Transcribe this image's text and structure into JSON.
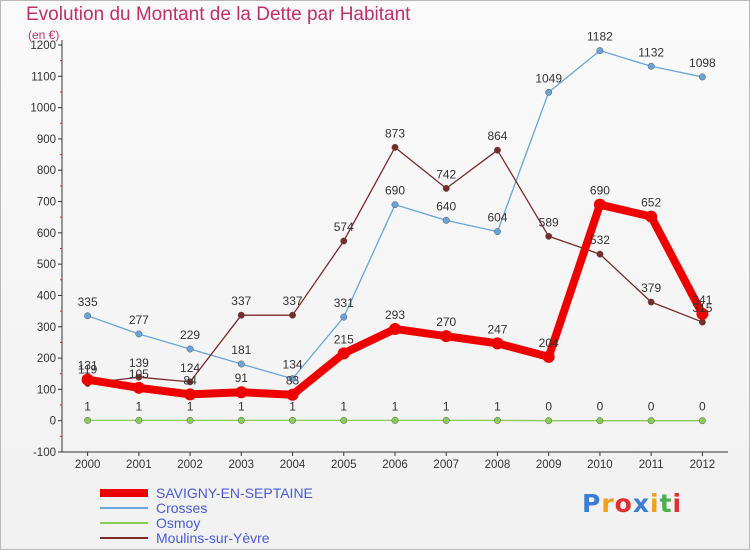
{
  "header": {
    "title": "Evolution du Montant de la Dette par Habitant",
    "subtitle": "(en €)"
  },
  "logo": {
    "text": "Proxiti",
    "colors": [
      "#3a7fd5",
      "#f0a020",
      "#e03030",
      "#3a7fd5",
      "#f0a020",
      "#4caf50",
      "#e03030"
    ]
  },
  "chart_data": {
    "type": "line",
    "x": [
      "2000",
      "2001",
      "2002",
      "2003",
      "2004",
      "2005",
      "2006",
      "2007",
      "2008",
      "2009",
      "2010",
      "2011",
      "2012"
    ],
    "ylim": [
      -100,
      1200
    ],
    "yticks": [
      -100,
      0,
      100,
      200,
      300,
      400,
      500,
      600,
      700,
      800,
      900,
      1000,
      1100,
      1200
    ],
    "grid": false,
    "legend": "bottom-left",
    "series": [
      {
        "name": "SAVIGNY-EN-SEPTAINE",
        "color": "#ee0000",
        "values": [
          131,
          105,
          84,
          91,
          83,
          215,
          293,
          270,
          247,
          204,
          690,
          652,
          341
        ],
        "labels": [
          "131",
          "105",
          "84",
          "91",
          "83",
          "215",
          "293",
          "270",
          "247",
          "204",
          "690",
          "652",
          "341"
        ]
      },
      {
        "name": "Crosses",
        "color": "#6aa5d9",
        "values": [
          335,
          277,
          229,
          181,
          134,
          331,
          690,
          640,
          604,
          1049,
          1182,
          1132,
          1098
        ],
        "labels": [
          "335",
          "277",
          "229",
          "181",
          "134",
          "331",
          "690",
          "640",
          "604",
          "1049",
          "1182",
          "1132",
          "1098"
        ]
      },
      {
        "name": "Osmoy",
        "color": "#88cc55",
        "values": [
          1,
          1,
          1,
          1,
          1,
          1,
          1,
          1,
          1,
          0,
          0,
          0,
          0
        ],
        "labels": [
          "1",
          "1",
          "1",
          "1",
          "1",
          "1",
          "1",
          "1",
          "1",
          "0",
          "0",
          "0",
          "0"
        ]
      },
      {
        "name": "Moulins-sur-Yèvre",
        "color": "#7a2a2a",
        "values": [
          119,
          139,
          124,
          337,
          337,
          574,
          873,
          742,
          864,
          589,
          532,
          379,
          315
        ],
        "labels": [
          "119",
          "139",
          "124",
          "337",
          "337",
          "574",
          "873",
          "742",
          "864",
          "589",
          "532",
          "379",
          "315"
        ]
      }
    ]
  }
}
